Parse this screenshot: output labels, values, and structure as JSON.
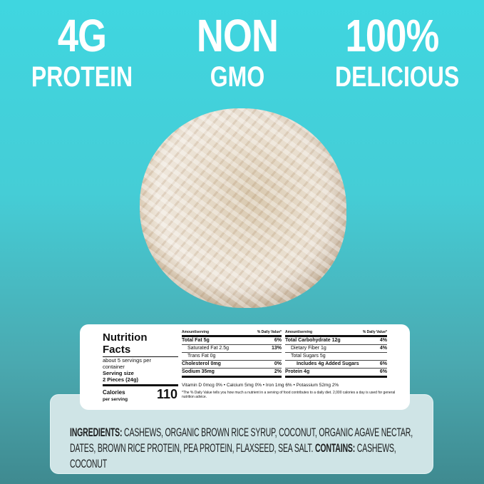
{
  "claims": [
    {
      "big": "4G",
      "small": "PROTEIN"
    },
    {
      "big": "NON",
      "small": "GMO"
    },
    {
      "big": "100%",
      "small": "DELICIOUS"
    }
  ],
  "nutrition": {
    "title_1": "Nutrition",
    "title_2": "Facts",
    "servings_1": "about 5 servings per",
    "servings_2": "container",
    "serving_size_label": "Serving size",
    "serving_size": "2 Pieces (24g)",
    "calories_label": "Calories",
    "calories_sub": "per serving",
    "calories": "110",
    "amount_label": "Amount/serving",
    "dv_label": "% Daily Value*",
    "left_rows": [
      {
        "label": "Total Fat 5g",
        "dv": "6%"
      },
      {
        "label": "Saturated Fat 2.5g",
        "dv": "13%"
      },
      {
        "label": "Trans Fat 0g",
        "dv": ""
      },
      {
        "label": "Cholesterol 0mg",
        "dv": "0%"
      },
      {
        "label": "Sodium 35mg",
        "dv": "2%"
      }
    ],
    "right_rows": [
      {
        "label": "Total Carbohydrate 12g",
        "dv": "4%"
      },
      {
        "label": "Dietary Fiber 1g",
        "dv": "4%"
      },
      {
        "label": "Total Sugars 5g",
        "dv": ""
      },
      {
        "label": "Includes 4g Added Sugars",
        "dv": "6%"
      },
      {
        "label": "Protein 4g",
        "dv": "6%"
      }
    ],
    "vitamins": "Vitamin D 0mcg 0%  •  Calcium 5mg 0%  •  Iron 1mg 6%  •  Potassium 52mg 2%",
    "footnote": "*The % Daily Value tells you how much a nutrient in a serving of food contributes to a daily diet. 2,000 calories a day is used for general nutrition advice."
  },
  "ingredients": {
    "label": "INGREDIENTS:",
    "text": " CASHEWS, ORGANIC BROWN RICE SYRUP, COCONUT, ORGANIC AGAVE NECTAR, DATES, BROWN RICE PROTEIN, PEA PROTEIN, FLAXSEED, SEA SALT.",
    "contains_label": " CONTAINS:",
    "contains": " CASHEWS, COCONUT"
  }
}
